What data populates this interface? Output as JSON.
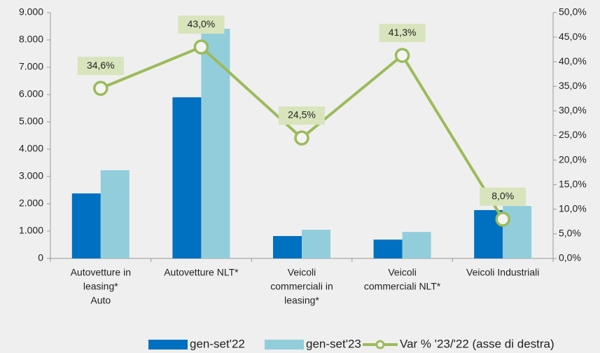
{
  "chart_data": {
    "type": "bar-line",
    "categories": [
      [
        "Autovetture in",
        "leasing*",
        "Auto"
      ],
      [
        "Autovetture NLT*"
      ],
      [
        "Veicoli",
        "commerciali in",
        "leasing*"
      ],
      [
        "Veicoli",
        "commerciali NLT*"
      ],
      [
        "Veicoli Industriali"
      ]
    ],
    "series": [
      {
        "name": "gen-set'22",
        "type": "bar",
        "color": "#0070c0",
        "values": [
          2380,
          5900,
          820,
          690,
          1770
        ]
      },
      {
        "name": "gen-set'23",
        "type": "bar",
        "color": "#92cddc",
        "values": [
          3230,
          8410,
          1050,
          970,
          1920
        ]
      },
      {
        "name": "Var % '23/'22 (asse di destra)",
        "type": "line",
        "axis": "y2",
        "color": "#9bbb59",
        "values": [
          34.6,
          43.0,
          24.5,
          41.3,
          8.0
        ],
        "value_labels": [
          "34,6%",
          "43,0%",
          "24,5%",
          "41,3%",
          "8,0%"
        ]
      }
    ],
    "ylim": [
      0,
      9000
    ],
    "yticks": [
      0,
      {
        "value": 1000,
        "label": "1.000"
      },
      {
        "value": 2000,
        "label": "2.000"
      },
      {
        "value": 3000,
        "label": "3.000"
      },
      {
        "value": 4000,
        "label": "4.000"
      },
      {
        "value": 5000,
        "label": "5.000"
      },
      {
        "value": 6000,
        "label": "6.000"
      },
      {
        "value": 7000,
        "label": "7.000"
      },
      {
        "value": 8000,
        "label": "8.000"
      },
      {
        "value": 9000,
        "label": "9.000"
      }
    ],
    "y2lim": [
      0,
      50
    ],
    "y2ticks": [
      {
        "value": 0,
        "label": "0,0%"
      },
      {
        "value": 5,
        "label": "5,0%"
      },
      {
        "value": 10,
        "label": "10,0%"
      },
      {
        "value": 15,
        "label": "15,0%"
      },
      {
        "value": 20,
        "label": "20,0%"
      },
      {
        "value": 25,
        "label": "25,0%"
      },
      {
        "value": 30,
        "label": "30,0%"
      },
      {
        "value": 35,
        "label": "35,0%"
      },
      {
        "value": 40,
        "label": "40,0%"
      },
      {
        "value": 45,
        "label": "45,0%"
      },
      {
        "value": 50,
        "label": "50,0%"
      }
    ],
    "legend": "bottom"
  }
}
